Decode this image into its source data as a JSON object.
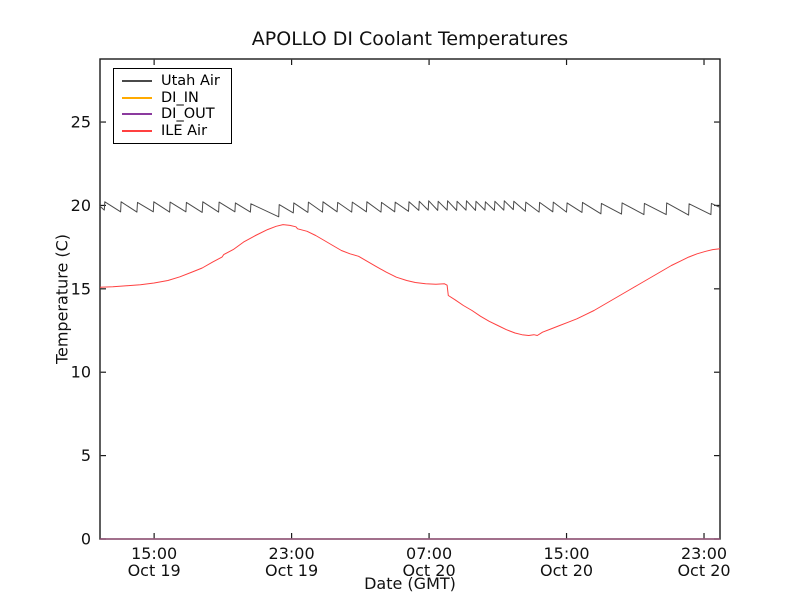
{
  "title": "APOLLO DI Coolant Temperatures",
  "chart_data": {
    "type": "line",
    "title": "APOLLO DI Coolant Temperatures",
    "xlabel": "Date (GMT)",
    "ylabel": "Temperature (C)",
    "x_unit": "hours since Oct 19 00:00 GMT",
    "xlim": [
      11.85,
      47.93
    ],
    "ylim": [
      0,
      28.78
    ],
    "grid": false,
    "legend_position": "upper left",
    "yticks": [
      0,
      5,
      10,
      15,
      20,
      25
    ],
    "xticks": [
      {
        "t": 15,
        "time": "15:00",
        "date": "Oct 19"
      },
      {
        "t": 23,
        "time": "23:00",
        "date": "Oct 19"
      },
      {
        "t": 31,
        "time": "07:00",
        "date": "Oct 20"
      },
      {
        "t": 39,
        "time": "15:00",
        "date": "Oct 20"
      },
      {
        "t": 47,
        "time": "23:00",
        "date": "Oct 20"
      }
    ],
    "series": [
      {
        "name": "Utah Air",
        "color": "#4a4a4a",
        "width": 1.0,
        "points": [
          [
            11.85,
            19.95
          ],
          [
            12.1,
            19.72
          ],
          [
            12.13,
            20.22
          ],
          [
            13.05,
            19.62
          ],
          [
            13.08,
            20.22
          ],
          [
            14.0,
            19.6
          ],
          [
            14.03,
            20.18
          ],
          [
            14.95,
            19.62
          ],
          [
            14.98,
            20.22
          ],
          [
            15.9,
            19.6
          ],
          [
            15.93,
            20.2
          ],
          [
            16.85,
            19.62
          ],
          [
            16.88,
            20.18
          ],
          [
            17.8,
            19.58
          ],
          [
            17.83,
            20.22
          ],
          [
            18.75,
            19.6
          ],
          [
            18.78,
            20.2
          ],
          [
            19.7,
            19.62
          ],
          [
            19.73,
            20.15
          ],
          [
            20.6,
            19.6
          ],
          [
            20.63,
            20.1
          ],
          [
            22.25,
            19.32
          ],
          [
            22.28,
            20.05
          ],
          [
            23.1,
            19.55
          ],
          [
            23.13,
            20.15
          ],
          [
            23.95,
            19.58
          ],
          [
            23.98,
            20.2
          ],
          [
            24.8,
            19.6
          ],
          [
            24.83,
            20.22
          ],
          [
            25.65,
            19.62
          ],
          [
            25.68,
            20.18
          ],
          [
            26.5,
            19.6
          ],
          [
            26.53,
            20.2
          ],
          [
            27.35,
            19.62
          ],
          [
            27.38,
            20.22
          ],
          [
            28.2,
            19.6
          ],
          [
            28.23,
            20.18
          ],
          [
            29.0,
            19.62
          ],
          [
            29.03,
            20.2
          ],
          [
            29.8,
            19.65
          ],
          [
            29.83,
            20.22
          ],
          [
            30.4,
            19.7
          ],
          [
            30.43,
            20.25
          ],
          [
            30.95,
            19.72
          ],
          [
            30.98,
            20.28
          ],
          [
            31.5,
            19.7
          ],
          [
            31.53,
            20.25
          ],
          [
            32.05,
            19.72
          ],
          [
            32.08,
            20.28
          ],
          [
            32.6,
            19.7
          ],
          [
            32.63,
            20.25
          ],
          [
            33.15,
            19.72
          ],
          [
            33.18,
            20.28
          ],
          [
            33.7,
            19.7
          ],
          [
            33.73,
            20.25
          ],
          [
            34.25,
            19.72
          ],
          [
            34.28,
            20.22
          ],
          [
            34.8,
            19.7
          ],
          [
            34.83,
            20.25
          ],
          [
            35.35,
            19.72
          ],
          [
            35.38,
            20.28
          ],
          [
            35.9,
            19.75
          ],
          [
            35.93,
            20.25
          ],
          [
            36.6,
            19.65
          ],
          [
            36.63,
            20.2
          ],
          [
            37.4,
            19.6
          ],
          [
            37.43,
            20.18
          ],
          [
            38.2,
            19.62
          ],
          [
            38.23,
            20.2
          ],
          [
            39.0,
            19.6
          ],
          [
            39.03,
            20.15
          ],
          [
            39.9,
            19.58
          ],
          [
            39.93,
            20.18
          ],
          [
            41.0,
            19.5
          ],
          [
            41.03,
            20.12
          ],
          [
            42.2,
            19.48
          ],
          [
            42.23,
            20.15
          ],
          [
            43.5,
            19.45
          ],
          [
            43.53,
            20.12
          ],
          [
            44.8,
            19.45
          ],
          [
            44.83,
            20.15
          ],
          [
            46.1,
            19.42
          ],
          [
            46.13,
            20.1
          ],
          [
            47.4,
            19.45
          ],
          [
            47.43,
            20.12
          ],
          [
            47.93,
            19.88
          ]
        ]
      },
      {
        "name": "DI_IN",
        "color": "#ffaa00",
        "width": 1.3,
        "points": [
          [
            11.85,
            0
          ],
          [
            47.93,
            0
          ]
        ]
      },
      {
        "name": "DI_OUT",
        "color": "#8b3a9e",
        "width": 1.1,
        "points": [
          [
            11.85,
            0
          ],
          [
            47.93,
            0
          ]
        ]
      },
      {
        "name": "ILE Air",
        "color": "#ff4040",
        "width": 1.0,
        "points": [
          [
            11.85,
            15.1
          ],
          [
            12.6,
            15.12
          ],
          [
            13.4,
            15.18
          ],
          [
            14.2,
            15.25
          ],
          [
            15.0,
            15.35
          ],
          [
            15.8,
            15.5
          ],
          [
            16.5,
            15.72
          ],
          [
            17.2,
            16.0
          ],
          [
            17.8,
            16.25
          ],
          [
            18.4,
            16.6
          ],
          [
            18.95,
            16.9
          ],
          [
            19.05,
            17.05
          ],
          [
            19.6,
            17.35
          ],
          [
            20.2,
            17.8
          ],
          [
            20.9,
            18.2
          ],
          [
            21.6,
            18.55
          ],
          [
            22.1,
            18.75
          ],
          [
            22.5,
            18.85
          ],
          [
            22.9,
            18.8
          ],
          [
            23.25,
            18.72
          ],
          [
            23.35,
            18.6
          ],
          [
            23.9,
            18.45
          ],
          [
            24.4,
            18.2
          ],
          [
            24.9,
            17.9
          ],
          [
            25.4,
            17.6
          ],
          [
            25.9,
            17.3
          ],
          [
            26.4,
            17.1
          ],
          [
            26.9,
            16.95
          ],
          [
            27.4,
            16.65
          ],
          [
            27.9,
            16.35
          ],
          [
            28.5,
            16.0
          ],
          [
            29.1,
            15.7
          ],
          [
            29.7,
            15.5
          ],
          [
            30.2,
            15.38
          ],
          [
            30.8,
            15.3
          ],
          [
            31.4,
            15.28
          ],
          [
            31.9,
            15.3
          ],
          [
            32.05,
            15.22
          ],
          [
            32.12,
            14.6
          ],
          [
            32.5,
            14.35
          ],
          [
            33.0,
            14.0
          ],
          [
            33.5,
            13.7
          ],
          [
            34.0,
            13.35
          ],
          [
            34.5,
            13.05
          ],
          [
            35.0,
            12.8
          ],
          [
            35.5,
            12.55
          ],
          [
            36.0,
            12.35
          ],
          [
            36.4,
            12.25
          ],
          [
            36.8,
            12.2
          ],
          [
            37.1,
            12.25
          ],
          [
            37.3,
            12.2
          ],
          [
            37.6,
            12.4
          ],
          [
            38.1,
            12.6
          ],
          [
            38.6,
            12.8
          ],
          [
            39.1,
            13.0
          ],
          [
            39.6,
            13.2
          ],
          [
            40.1,
            13.45
          ],
          [
            40.6,
            13.7
          ],
          [
            41.1,
            14.0
          ],
          [
            41.6,
            14.3
          ],
          [
            42.1,
            14.6
          ],
          [
            42.6,
            14.9
          ],
          [
            43.1,
            15.2
          ],
          [
            43.6,
            15.5
          ],
          [
            44.1,
            15.8
          ],
          [
            44.6,
            16.1
          ],
          [
            45.1,
            16.4
          ],
          [
            45.6,
            16.65
          ],
          [
            46.1,
            16.9
          ],
          [
            46.6,
            17.1
          ],
          [
            47.1,
            17.25
          ],
          [
            47.5,
            17.35
          ],
          [
            47.93,
            17.4
          ]
        ]
      }
    ]
  }
}
